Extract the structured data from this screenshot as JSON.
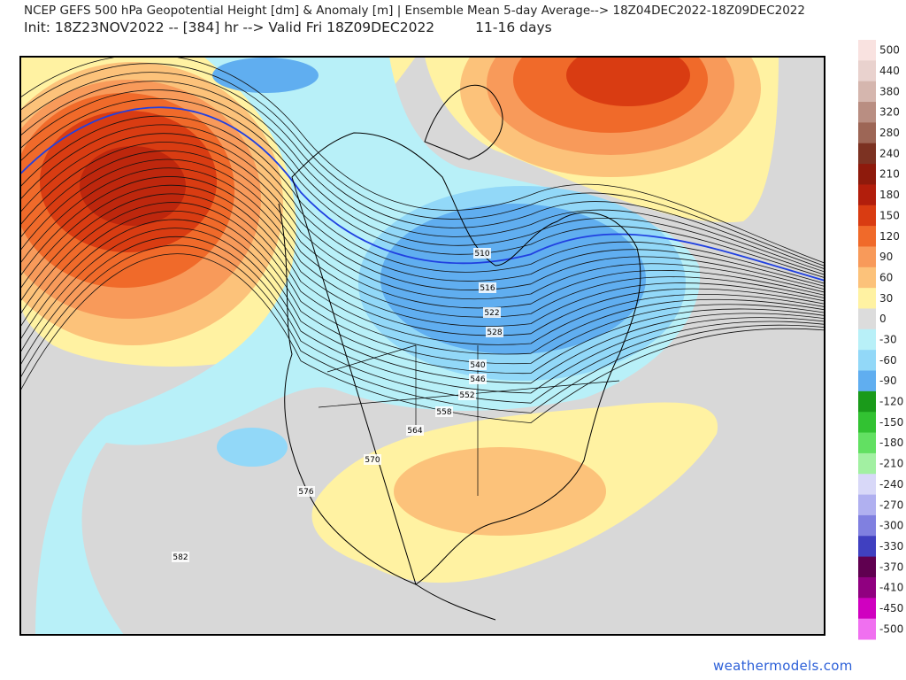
{
  "header": {
    "title": "NCEP GEFS 500 hPa Geopotential Height [dm] & Anomaly [m] | Ensemble Mean 5-day Average--> 18Z04DEC2022-18Z09DEC2022",
    "init": "Init: 18Z23NOV2022 -- [384] hr --> Valid Fri 18Z09DEC2022",
    "range": "11-16 days"
  },
  "contour_labels": [
    "510",
    "516",
    "522",
    "528",
    "540",
    "546",
    "552",
    "558",
    "564",
    "570",
    "576",
    "582"
  ],
  "colorbar": [
    {
      "label": "500",
      "color": "#f9e2e0"
    },
    {
      "label": "440",
      "color": "#e9d2ce"
    },
    {
      "label": "380",
      "color": "#d5b6ae"
    },
    {
      "label": "320",
      "color": "#b98e82"
    },
    {
      "label": "280",
      "color": "#9d6656"
    },
    {
      "label": "240",
      "color": "#7c3222"
    },
    {
      "label": "210",
      "color": "#8e1a0c"
    },
    {
      "label": "180",
      "color": "#b21e0c"
    },
    {
      "label": "150",
      "color": "#d93c12"
    },
    {
      "label": "120",
      "color": "#f06a2a"
    },
    {
      "label": "90",
      "color": "#f89a5a"
    },
    {
      "label": "60",
      "color": "#fcc27a"
    },
    {
      "label": "30",
      "color": "#fff2a2"
    },
    {
      "label": "0",
      "color": "#dcdcdc"
    },
    {
      "label": "-30",
      "color": "#b8f0f8"
    },
    {
      "label": "-60",
      "color": "#92d8f8"
    },
    {
      "label": "-90",
      "color": "#60aef0"
    },
    {
      "label": "-120",
      "color": "#1a9a1a"
    },
    {
      "label": "-150",
      "color": "#32c232"
    },
    {
      "label": "-180",
      "color": "#62e062"
    },
    {
      "label": "-210",
      "color": "#a2f0a2"
    },
    {
      "label": "-240",
      "color": "#d8d8f8"
    },
    {
      "label": "-270",
      "color": "#b0b0f0"
    },
    {
      "label": "-300",
      "color": "#8080e0"
    },
    {
      "label": "-330",
      "color": "#4040c0"
    },
    {
      "label": "-370",
      "color": "#600050"
    },
    {
      "label": "-410",
      "color": "#900080"
    },
    {
      "label": "-450",
      "color": "#d000c0"
    },
    {
      "label": "-500",
      "color": "#f070f0"
    }
  ],
  "watermark": "weathermodels.com"
}
